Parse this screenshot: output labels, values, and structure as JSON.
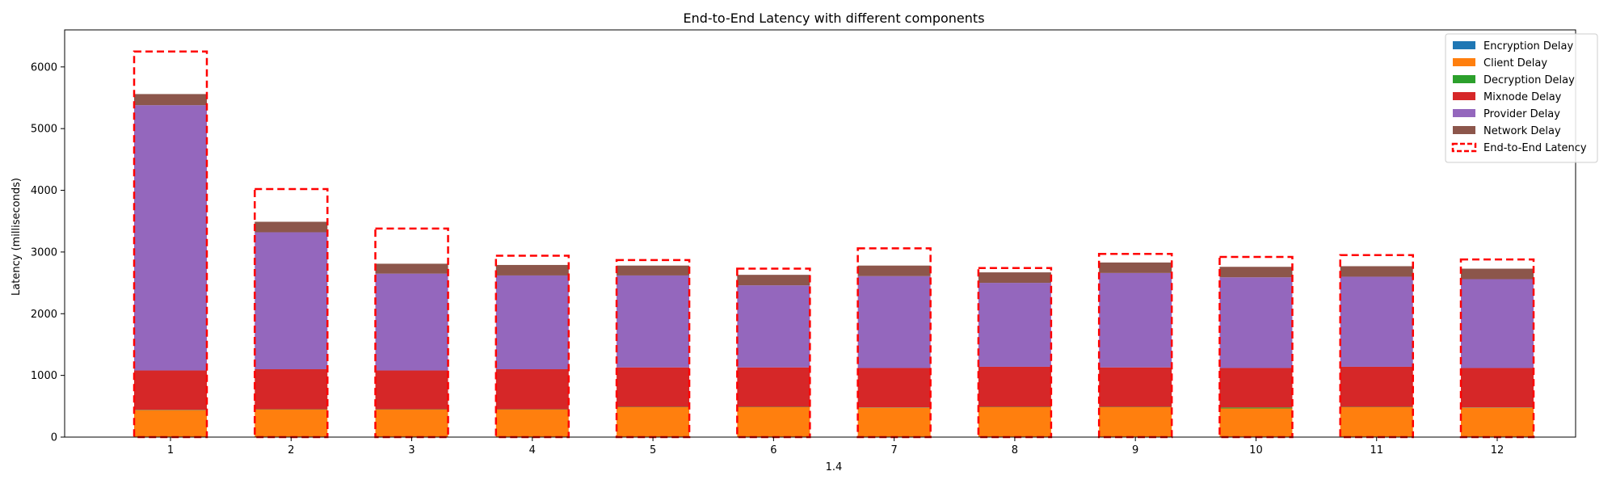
{
  "chart_data": {
    "type": "bar",
    "stacked": true,
    "title": "End-to-End Latency with different components",
    "xlabel": "1.4",
    "ylabel": "Latency (milliseconds)",
    "categories": [
      "1",
      "2",
      "3",
      "4",
      "5",
      "6",
      "7",
      "8",
      "9",
      "10",
      "11",
      "12"
    ],
    "ylim": [
      0,
      6600
    ],
    "yticks": [
      0,
      1000,
      2000,
      3000,
      4000,
      5000,
      6000
    ],
    "grid": false,
    "legend_position": "top-right",
    "series": [
      {
        "name": "Encryption Delay",
        "color": "#1f77b4",
        "values": [
          5,
          5,
          5,
          5,
          5,
          5,
          5,
          5,
          5,
          5,
          5,
          5
        ]
      },
      {
        "name": "Client Delay",
        "color": "#ff7f0e",
        "values": [
          430,
          440,
          440,
          440,
          480,
          480,
          470,
          480,
          480,
          460,
          480,
          470
        ]
      },
      {
        "name": "Decryption Delay",
        "color": "#2ca02c",
        "values": [
          5,
          5,
          5,
          5,
          5,
          5,
          5,
          5,
          5,
          15,
          5,
          5
        ]
      },
      {
        "name": "Mixnode Delay",
        "color": "#d62728",
        "values": [
          640,
          650,
          630,
          650,
          640,
          640,
          640,
          650,
          640,
          640,
          650,
          640
        ]
      },
      {
        "name": "Provider Delay",
        "color": "#9467bd",
        "values": [
          4300,
          2220,
          1570,
          1520,
          1490,
          1330,
          1490,
          1360,
          1530,
          1470,
          1460,
          1440
        ]
      },
      {
        "name": "Network Delay",
        "color": "#8c564b",
        "values": [
          180,
          170,
          160,
          170,
          160,
          170,
          170,
          170,
          170,
          170,
          170,
          170
        ]
      }
    ],
    "end_to_end": {
      "name": "End-to-End Latency",
      "color": "#ff0000",
      "values": [
        6250,
        4020,
        3380,
        2940,
        2870,
        2730,
        3060,
        2740,
        2970,
        2920,
        2950,
        2880
      ]
    }
  }
}
